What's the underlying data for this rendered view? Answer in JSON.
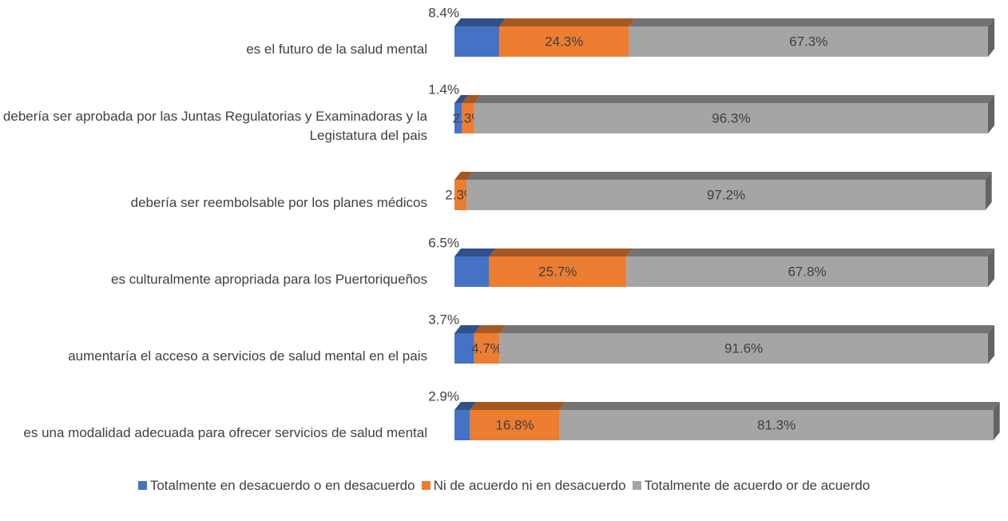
{
  "chart_data": {
    "type": "stacked-bar-horizontal-3d",
    "categories": [
      "es el futuro de la salud mental",
      "debería ser aprobada por las Juntas Regulatorias y Examinadoras y la Legistatura del pais",
      "debería ser reembolsable por los planes médicos",
      "es culturalmente apropriada para los Puertoriqueños",
      "aumentaría el acceso a servicios de salud mental en el pais",
      "es una modalidad adecuada para ofrecer servicios de salud mental"
    ],
    "xlim": [
      0,
      100
    ],
    "series": [
      {
        "name": "Totalmente en desacuerdo o en desacuerdo",
        "color": "#4472c4",
        "values": [
          8.4,
          1.4,
          null,
          6.5,
          3.7,
          2.9
        ],
        "value_labels": [
          "8.4%",
          "1.4%",
          null,
          "6.5%",
          "3.7%",
          "2.9%"
        ]
      },
      {
        "name": "Ni de acuerdo ni en desacuerdo",
        "color": "#ed7d31",
        "values": [
          24.3,
          2.3,
          2.3,
          25.7,
          4.7,
          16.8
        ],
        "value_labels": [
          "24.3%",
          "2.3%",
          "2.3%",
          "25.7%",
          "4.7%",
          "16.8%"
        ]
      },
      {
        "name": "Totalmente de acuerdo or de acuerdo",
        "color": "#a5a5a5",
        "values": [
          67.3,
          96.3,
          97.2,
          67.8,
          91.6,
          81.3
        ],
        "value_labels": [
          "67.3%",
          "96.3%",
          "97.2%",
          "67.8%",
          "91.6%",
          "81.3%"
        ]
      }
    ],
    "legend": "bottom"
  }
}
